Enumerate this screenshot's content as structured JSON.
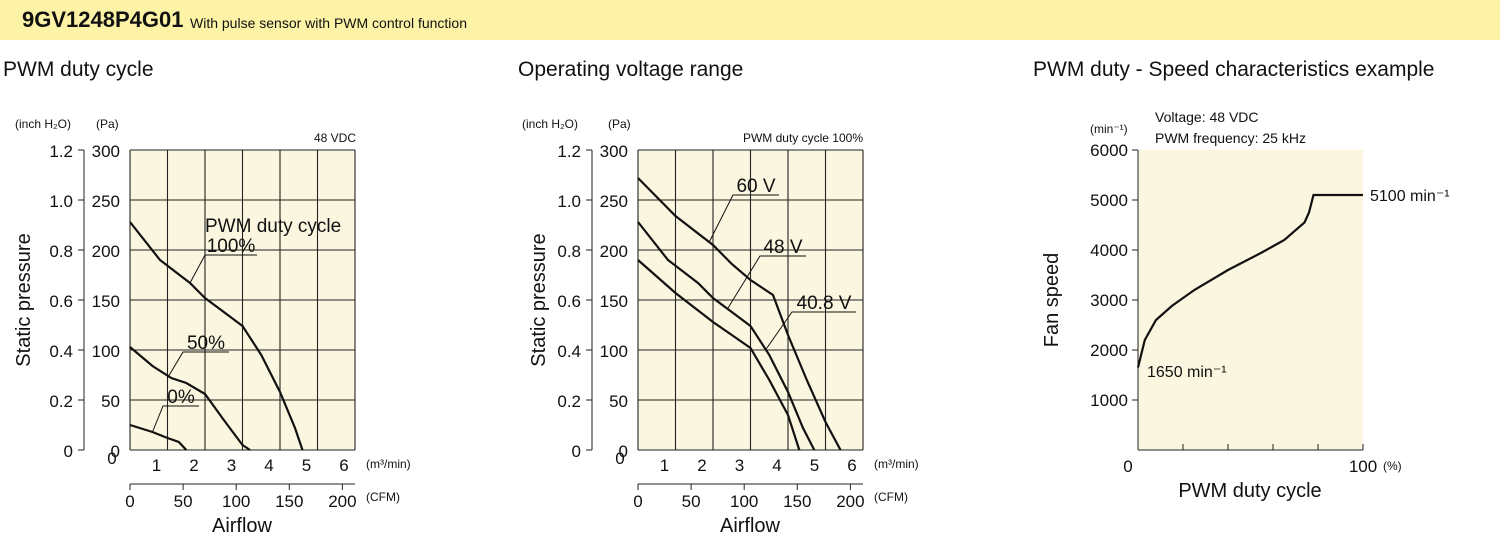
{
  "header": {
    "model": "9GV1248P4G01",
    "description": "With pulse sensor with PWM control function"
  },
  "colors": {
    "header_bg": "#fdf3a6",
    "plot_bg": "#fbf6df"
  },
  "chart_data": [
    {
      "type": "line",
      "title": "PWM duty cycle",
      "condition": "48 VDC",
      "legend_title": "PWM duty cycle",
      "ylabel": "Static pressure",
      "xlabel": "Airflow",
      "y_units": {
        "inch": "(inch H₂O)",
        "pa": "(Pa)"
      },
      "x_units": {
        "m3": "(m³/min)",
        "cfm": "(CFM)"
      },
      "y_ticks_pa": [
        "0",
        "50",
        "100",
        "150",
        "200",
        "250",
        "300"
      ],
      "y_ticks_inch": [
        "0",
        "0.2",
        "0.4",
        "0.6",
        "0.8",
        "1.0",
        "1.2"
      ],
      "x_ticks_m3": [
        "0",
        "1",
        "2",
        "3",
        "4",
        "5",
        "6"
      ],
      "x_ticks_cfm": [
        "0",
        "50",
        "100",
        "150",
        "200"
      ],
      "xlim": [
        0,
        6
      ],
      "ylim": [
        0,
        300
      ],
      "series": [
        {
          "name": "100%",
          "points": [
            [
              0,
              228
            ],
            [
              0.8,
              190
            ],
            [
              1.6,
              167
            ],
            [
              2,
              152
            ],
            [
              2.5,
              138
            ],
            [
              3,
              124
            ],
            [
              3.5,
              95
            ],
            [
              4,
              58
            ],
            [
              4.4,
              22
            ],
            [
              4.6,
              0
            ]
          ]
        },
        {
          "name": "50%",
          "points": [
            [
              0,
              103
            ],
            [
              0.6,
              84
            ],
            [
              1.1,
              72
            ],
            [
              1.5,
              67
            ],
            [
              2,
              56
            ],
            [
              2.5,
              30
            ],
            [
              3,
              5
            ],
            [
              3.2,
              0
            ]
          ]
        },
        {
          "name": "0%",
          "points": [
            [
              0,
              25
            ],
            [
              0.6,
              18
            ],
            [
              1,
              12
            ],
            [
              1.3,
              8
            ],
            [
              1.5,
              0
            ]
          ]
        }
      ]
    },
    {
      "type": "line",
      "title": "Operating voltage range",
      "condition": "PWM duty cycle 100%",
      "ylabel": "Static pressure",
      "xlabel": "Airflow",
      "y_units": {
        "inch": "(inch H₂O)",
        "pa": "(Pa)"
      },
      "x_units": {
        "m3": "(m³/min)",
        "cfm": "(CFM)"
      },
      "y_ticks_pa": [
        "0",
        "50",
        "100",
        "150",
        "200",
        "250",
        "300"
      ],
      "y_ticks_inch": [
        "0",
        "0.2",
        "0.4",
        "0.6",
        "0.8",
        "1.0",
        "1.2"
      ],
      "x_ticks_m3": [
        "0",
        "1",
        "2",
        "3",
        "4",
        "5",
        "6"
      ],
      "x_ticks_cfm": [
        "0",
        "50",
        "100",
        "150",
        "200"
      ],
      "xlim": [
        0,
        6
      ],
      "ylim": [
        0,
        300
      ],
      "series": [
        {
          "name": "60 V",
          "points": [
            [
              0,
              272
            ],
            [
              1,
              234
            ],
            [
              2,
              205
            ],
            [
              2.5,
              186
            ],
            [
              3,
              170
            ],
            [
              3.6,
              155
            ],
            [
              4,
              115
            ],
            [
              4.5,
              70
            ],
            [
              5,
              28
            ],
            [
              5.4,
              0
            ]
          ]
        },
        {
          "name": "48 V",
          "points": [
            [
              0,
              228
            ],
            [
              0.8,
              190
            ],
            [
              1.6,
              167
            ],
            [
              2,
              152
            ],
            [
              2.5,
              138
            ],
            [
              3,
              124
            ],
            [
              3.5,
              95
            ],
            [
              4,
              58
            ],
            [
              4.4,
              22
            ],
            [
              4.7,
              0
            ]
          ]
        },
        {
          "name": "40.8 V",
          "points": [
            [
              0,
              190
            ],
            [
              1,
              157
            ],
            [
              2,
              128
            ],
            [
              2.5,
              115
            ],
            [
              3,
              102
            ],
            [
              3.5,
              70
            ],
            [
              4,
              35
            ],
            [
              4.3,
              0
            ]
          ]
        }
      ]
    },
    {
      "type": "line",
      "title": "PWM duty - Speed characteristics example",
      "conditions": [
        "Voltage: 48 VDC",
        "PWM frequency: 25 kHz"
      ],
      "ylabel": "Fan speed",
      "xlabel": "PWM duty cycle",
      "y_unit": "(min⁻¹)",
      "x_unit": "(%)",
      "y_ticks": [
        "1000",
        "2000",
        "3000",
        "4000",
        "5000",
        "6000"
      ],
      "x_ticks": [
        "0",
        "100"
      ],
      "xlim": [
        0,
        100
      ],
      "ylim": [
        0,
        6000
      ],
      "annotations": {
        "max": "5100 min⁻¹",
        "min": "1650 min⁻¹"
      },
      "series": [
        {
          "points": [
            [
              0,
              1650
            ],
            [
              3,
              2200
            ],
            [
              8,
              2600
            ],
            [
              15,
              2880
            ],
            [
              25,
              3200
            ],
            [
              40,
              3600
            ],
            [
              55,
              3950
            ],
            [
              65,
              4200
            ],
            [
              74,
              4550
            ],
            [
              76,
              4750
            ],
            [
              78,
              5100
            ],
            [
              100,
              5100
            ]
          ]
        }
      ]
    }
  ]
}
